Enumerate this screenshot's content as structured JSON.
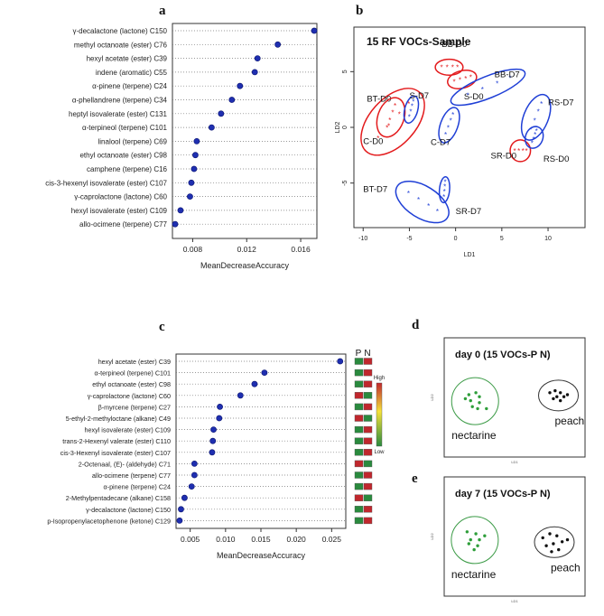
{
  "panels": {
    "a": {
      "letter": "a",
      "chart_data": {
        "type": "scatter",
        "xlabel": "MeanDecreaseAccuracy",
        "xlim": [
          0.0065,
          0.0172
        ],
        "xticks": [
          "0.008",
          "0.012",
          "0.016"
        ],
        "xtick_values": [
          0.008,
          0.012,
          0.016
        ],
        "points": [
          {
            "label": "γ-decalactone (lactone)",
            "code": "C150",
            "value": 0.017
          },
          {
            "label": "methyl octanoate (ester)",
            "code": "C76",
            "value": 0.0143
          },
          {
            "label": "hexyl acetate (ester)",
            "code": "C39",
            "value": 0.0128
          },
          {
            "label": "indene (aromatic)",
            "code": "C55",
            "value": 0.0126
          },
          {
            "label": "α-pinene (terpene)",
            "code": "C24",
            "value": 0.0115
          },
          {
            "label": "α-phellandrene (terpene)",
            "code": "C34",
            "value": 0.0109
          },
          {
            "label": "heptyl isovalerate (ester)",
            "code": "C131",
            "value": 0.0101
          },
          {
            "label": "α-terpineol (terpene)",
            "code": "C101",
            "value": 0.0094
          },
          {
            "label": "linalool (terpene)",
            "code": "C69",
            "value": 0.0083
          },
          {
            "label": "ethyl octanoate (ester)",
            "code": "C98",
            "value": 0.0082
          },
          {
            "label": "camphene (terpene)",
            "code": "C16",
            "value": 0.0081
          },
          {
            "label": "cis-3-hexenyl isovalerate (ester)",
            "code": "C107",
            "value": 0.0079
          },
          {
            "label": "γ-caprolactone (lactone)",
            "code": "C60",
            "value": 0.0078
          },
          {
            "label": "hexyl isovalerate (ester)",
            "code": "C109",
            "value": 0.0071
          },
          {
            "label": "allo-ocimene (terpene)",
            "code": "C77",
            "value": 0.0067
          }
        ]
      }
    },
    "b": {
      "letter": "b",
      "chart_data": {
        "type": "scatter",
        "title": "15 RF VOCs-Sample",
        "xlabel": "LD1",
        "ylabel": "LD2",
        "xlim": [
          -11,
          14
        ],
        "ylim": [
          -9,
          9
        ],
        "xticks": [
          -10,
          -5,
          0,
          5,
          10
        ],
        "yticks": [
          -5,
          0,
          5
        ],
        "groups": [
          {
            "name": "BT-D0",
            "color": "#e31a1c",
            "cx": -6.8,
            "cy": 0.5,
            "rx": 4.3,
            "ry": 1.6,
            "angle": -48,
            "label_x": -9.6,
            "label_y": 2.3
          },
          {
            "name": "C-D0",
            "color": "#e31a1c",
            "cx": -7.0,
            "cy": 0.9,
            "rx": 2.2,
            "ry": 0.9,
            "angle": -70,
            "label_x": -10.0,
            "label_y": -1.5
          },
          {
            "name": "S-D7",
            "color": "#1f3fd6",
            "cx": -4.8,
            "cy": 1.6,
            "rx": 1.5,
            "ry": 0.45,
            "angle": -75,
            "label_x": -5.0,
            "label_y": 2.6
          },
          {
            "name": "BB-D0",
            "color": "#e31a1c",
            "cx": -0.7,
            "cy": 5.4,
            "rx": 1.5,
            "ry": 0.55,
            "angle": 0,
            "label_x": -1.5,
            "label_y": 7.2
          },
          {
            "name": "S-D0",
            "color": "#e31a1c",
            "cx": 0.7,
            "cy": 4.3,
            "rx": 1.6,
            "ry": 0.6,
            "angle": -15,
            "label_x": 0.9,
            "label_y": 2.5
          },
          {
            "name": "BB-D7",
            "color": "#1f3fd6",
            "cx": 3.5,
            "cy": 3.6,
            "rx": 4.3,
            "ry": 0.75,
            "angle": -22,
            "label_x": 4.2,
            "label_y": 4.5
          },
          {
            "name": "C-D7",
            "color": "#1f3fd6",
            "cx": -0.7,
            "cy": 0.2,
            "rx": 2.0,
            "ry": 0.6,
            "angle": -70,
            "label_x": -2.7,
            "label_y": -1.6
          },
          {
            "name": "BT-D7",
            "color": "#1f3fd6",
            "cx": -3.6,
            "cy": -6.7,
            "rx": 3.2,
            "ry": 1.1,
            "angle": 32,
            "label_x": -10.0,
            "label_y": -5.8
          },
          {
            "name": "SR-D7",
            "color": "#1f3fd6",
            "cx": -1.2,
            "cy": -5.6,
            "rx": 1.4,
            "ry": 0.35,
            "angle": -85,
            "label_x": 0.0,
            "label_y": -7.8
          },
          {
            "name": "RS-D7",
            "color": "#1f3fd6",
            "cx": 8.7,
            "cy": 0.9,
            "rx": 2.6,
            "ry": 0.85,
            "angle": -68,
            "label_x": 10.0,
            "label_y": 2.0
          },
          {
            "name": "SR-D0",
            "color": "#e31a1c",
            "cx": 7.0,
            "cy": -2.1,
            "rx": 1.1,
            "ry": 0.75,
            "angle": 0,
            "label_x": 3.8,
            "label_y": -2.8
          },
          {
            "name": "RS-D0",
            "color": "#1f3fd6",
            "cx": 8.5,
            "cy": -0.9,
            "rx": 1.2,
            "ry": 0.6,
            "angle": -70,
            "label_x": 9.5,
            "label_y": -3.1
          }
        ]
      }
    },
    "c": {
      "letter": "c",
      "chart_data": {
        "type": "scatter",
        "xlabel": "MeanDecreaseAccuracy",
        "xlim": [
          0.003,
          0.027
        ],
        "xticks": [
          "0.005",
          "0.010",
          "0.015",
          "0.020",
          "0.025"
        ],
        "xtick_values": [
          0.005,
          0.01,
          0.015,
          0.02,
          0.025
        ],
        "heatmap_columns": [
          "P",
          "N"
        ],
        "colorbar_high": "High",
        "colorbar_low": "Low",
        "points": [
          {
            "label": "hexyl acetate (ester)",
            "code": "C39",
            "value": 0.0262,
            "P": "green",
            "N": "red"
          },
          {
            "label": "α-terpineol (terpene)",
            "code": "C101",
            "value": 0.0155,
            "P": "green",
            "N": "red"
          },
          {
            "label": "ethyl octanoate (ester)",
            "code": "C98",
            "value": 0.0141,
            "P": "green",
            "N": "red"
          },
          {
            "label": "γ-caprolactone (lactone)",
            "code": "C60",
            "value": 0.0121,
            "P": "red",
            "N": "green"
          },
          {
            "label": "β-myrcene (terpene)",
            "code": "C27",
            "value": 0.0092,
            "P": "green",
            "N": "red"
          },
          {
            "label": "5-ethyl-2-methyloctane (alkane)",
            "code": "C49",
            "value": 0.0091,
            "P": "red",
            "N": "green"
          },
          {
            "label": "hexyl isovalerate (ester)",
            "code": "C109",
            "value": 0.0083,
            "P": "green",
            "N": "red"
          },
          {
            "label": "trans-2-Hexenyl valerate (ester)",
            "code": "C110",
            "value": 0.0082,
            "P": "green",
            "N": "red"
          },
          {
            "label": "cis-3-Hexenyl isovalerate (ester)",
            "code": "C107",
            "value": 0.0081,
            "P": "green",
            "N": "red"
          },
          {
            "label": "2-Octenaal, (E)- (aldehyde)",
            "code": "C71",
            "value": 0.0056,
            "P": "red",
            "N": "green"
          },
          {
            "label": "allo-ocimene (terpene)",
            "code": "C77",
            "value": 0.0056,
            "P": "green",
            "N": "red"
          },
          {
            "label": "α-pinene (terpene)",
            "code": "C24",
            "value": 0.0052,
            "P": "green",
            "N": "red"
          },
          {
            "label": "2-Methylpentadecane (alkane)",
            "code": "C158",
            "value": 0.0042,
            "P": "red",
            "N": "green"
          },
          {
            "label": "γ-decalactone (lactone)",
            "code": "C150",
            "value": 0.0037,
            "P": "green",
            "N": "red"
          },
          {
            "label": "p-Isopropenylacetophenone (ketone)",
            "code": "C129",
            "value": 0.0035,
            "P": "green",
            "N": "red"
          }
        ]
      }
    },
    "d": {
      "letter": "d",
      "chart_data": {
        "type": "scatter",
        "title": "day 0 (15 VOCs-P N)",
        "xlabel": "LD1",
        "ylabel": "LD2",
        "groups": [
          {
            "name": "nectarine",
            "color": "#2e9e3a",
            "points": [
              [
                -2.6,
                0.5
              ],
              [
                -2.2,
                0.6
              ],
              [
                -2.0,
                0.4
              ],
              [
                -2.5,
                0.2
              ],
              [
                -2.0,
                0.1
              ],
              [
                -2.4,
                -0.1
              ],
              [
                -2.1,
                -0.2
              ],
              [
                -1.6,
                -0.2
              ],
              [
                -2.8,
                0.3
              ]
            ]
          },
          {
            "name": "peach",
            "color": "#111111",
            "points": [
              [
                2.0,
                0.6
              ],
              [
                2.3,
                0.7
              ],
              [
                2.6,
                0.6
              ],
              [
                2.4,
                0.4
              ],
              [
                2.8,
                0.4
              ],
              [
                2.2,
                0.3
              ],
              [
                2.6,
                0.2
              ],
              [
                3.0,
                0.5
              ]
            ]
          }
        ]
      }
    },
    "e": {
      "letter": "e",
      "chart_data": {
        "type": "scatter",
        "title": "day 7 (15 VOCs-P N)",
        "xlabel": "LD1",
        "ylabel": "LD2",
        "groups": [
          {
            "name": "nectarine",
            "color": "#2e9e3a",
            "points": [
              [
                -2.7,
                0.6
              ],
              [
                -2.2,
                0.5
              ],
              [
                -2.5,
                0.2
              ],
              [
                -2.0,
                0.2
              ],
              [
                -2.6,
                0.0
              ],
              [
                -2.1,
                -0.1
              ],
              [
                -1.7,
                0.4
              ],
              [
                -2.3,
                -0.3
              ]
            ]
          },
          {
            "name": "peach",
            "color": "#111111",
            "points": [
              [
                1.6,
                0.3
              ],
              [
                2.0,
                0.5
              ],
              [
                2.4,
                0.4
              ],
              [
                2.7,
                0.1
              ],
              [
                2.2,
                0.0
              ],
              [
                1.8,
                -0.1
              ],
              [
                2.5,
                -0.3
              ],
              [
                3.0,
                0.2
              ],
              [
                2.1,
                -0.4
              ]
            ]
          }
        ]
      }
    }
  }
}
